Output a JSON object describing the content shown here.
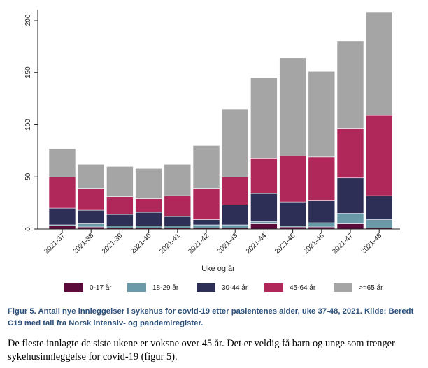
{
  "chart_data": {
    "type": "bar",
    "stacked": true,
    "categories": [
      "2021-37",
      "2021-38",
      "2021-39",
      "2021-40",
      "2021-41",
      "2021-42",
      "2021-43",
      "2021-44",
      "2021-45",
      "2021-46",
      "2021-47",
      "2021-48"
    ],
    "series": [
      {
        "name": "0-17 år",
        "color": "#5c0a3a",
        "values": [
          3,
          2,
          1,
          1,
          1,
          1,
          1,
          5,
          2,
          2,
          5,
          1
        ]
      },
      {
        "name": "18-29 år",
        "color": "#6a9aa8",
        "values": [
          1,
          3,
          2,
          2,
          2,
          3,
          3,
          2,
          1,
          4,
          10,
          8
        ]
      },
      {
        "name": "30-44 år",
        "color": "#2e2f57",
        "values": [
          16,
          13,
          11,
          13,
          9,
          5,
          19,
          27,
          23,
          21,
          34,
          23
        ]
      },
      {
        "name": "45-64 år",
        "color": "#b0285a",
        "values": [
          30,
          21,
          17,
          13,
          20,
          30,
          27,
          34,
          44,
          42,
          47,
          77
        ]
      },
      {
        "name": ">=65 år",
        "color": "#a5a5a5",
        "values": [
          27,
          23,
          29,
          29,
          30,
          41,
          65,
          77,
          94,
          82,
          84,
          99
        ]
      }
    ],
    "xlabel": "Uke og år",
    "ylabel": "",
    "ylim": [
      0,
      210
    ],
    "yticks": [
      0,
      50,
      100,
      150,
      200
    ],
    "grid": false,
    "legend_position": "bottom"
  },
  "caption": "Figur 5. Antall nye innleggelser i sykehus for covid-19 etter pasientenes alder, uke 37-48, 2021. Kilde: Beredt C19 med tall fra Norsk intensiv- og pandemiregister.",
  "body_text": "De fleste innlagte de siste ukene er voksne over 45 år. Det er veldig få barn og unge som trenger sykehusinnleggelse for covid-19 (figur 5)."
}
